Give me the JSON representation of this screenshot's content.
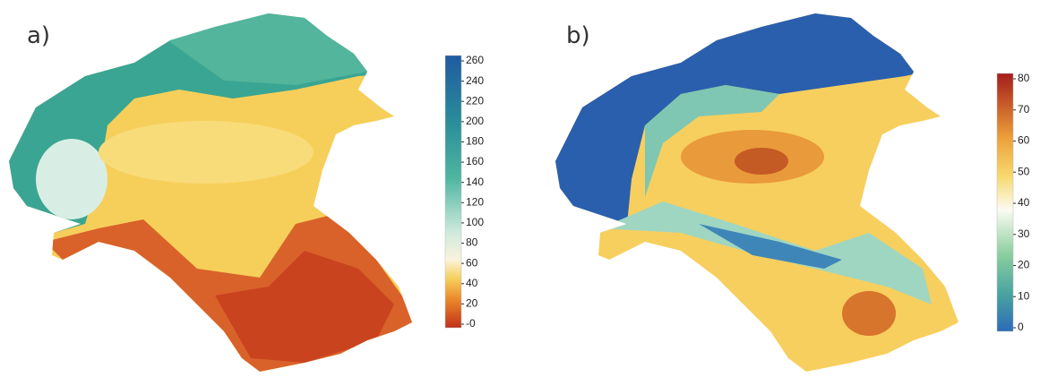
{
  "panels": [
    {
      "label": "a)",
      "colorbar": {
        "range": [
          0,
          260
        ],
        "ticks": [
          260,
          240,
          220,
          200,
          180,
          160,
          140,
          120,
          100,
          80,
          60,
          40,
          20,
          {
            "value": 0,
            "label": "-0"
          }
        ]
      }
    },
    {
      "label": "b)",
      "colorbar": {
        "range": [
          0,
          80
        ],
        "ticks": [
          80,
          70,
          60,
          50,
          40,
          30,
          20,
          10,
          0
        ]
      }
    }
  ]
}
